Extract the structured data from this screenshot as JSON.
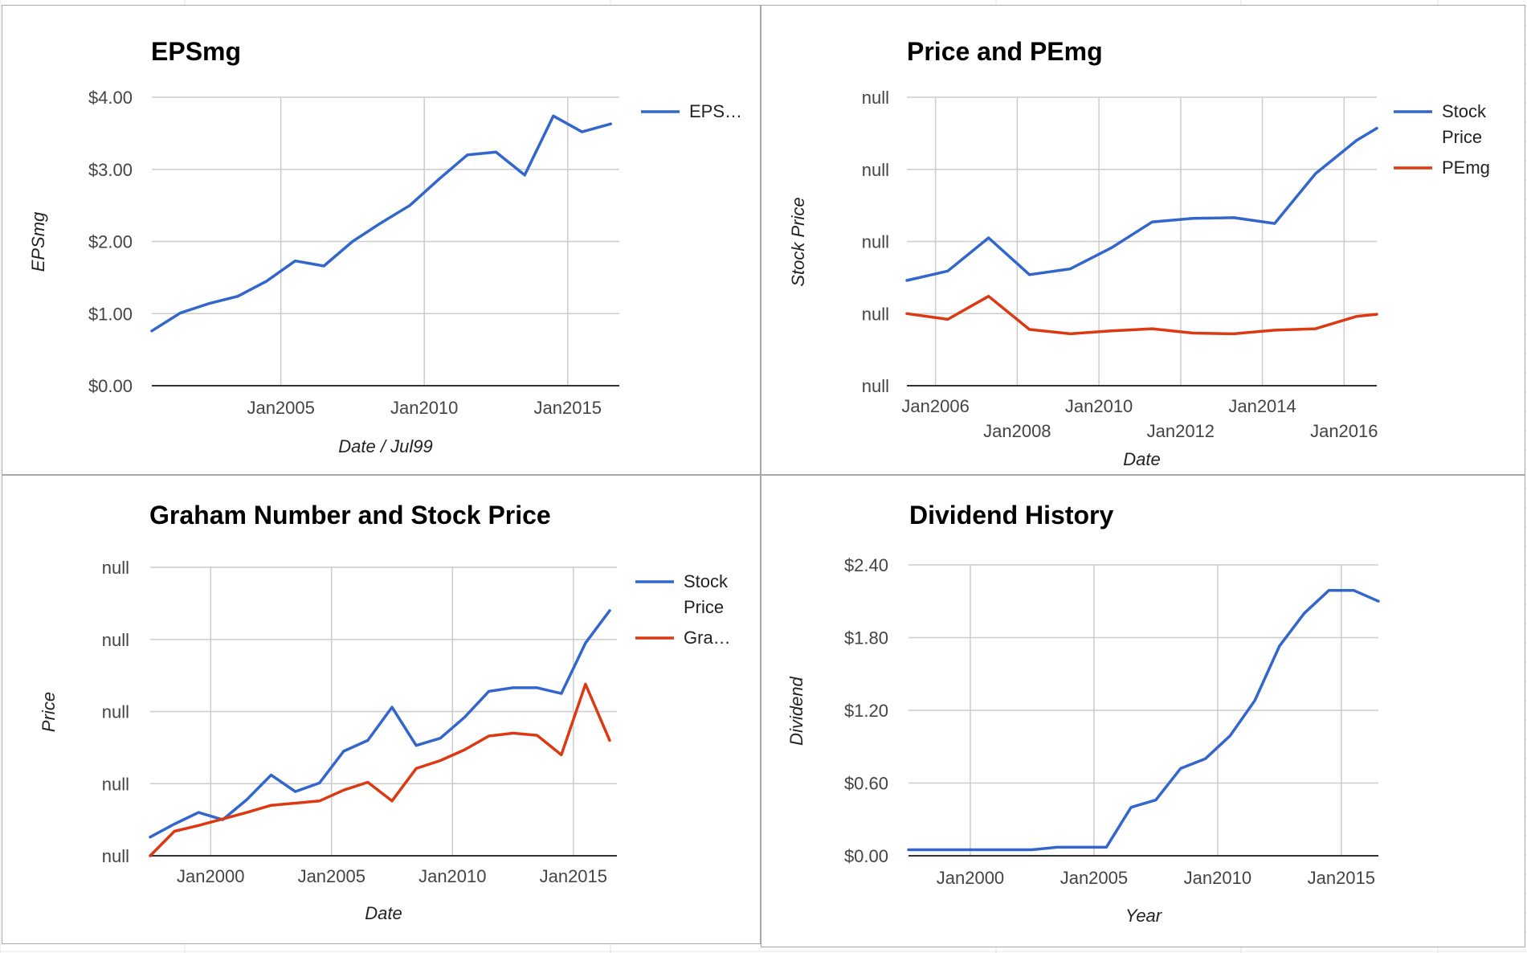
{
  "colors": {
    "series_blue": "#3366cc",
    "series_red": "#dc3912",
    "grid": "#cccccc",
    "axis": "#333333"
  },
  "chart_data": [
    {
      "type": "line",
      "title": "EPSmg",
      "xlabel": "Date / Jul99",
      "ylabel": "EPSmg",
      "xlim": [
        2000.5,
        2016.8
      ],
      "ylim": [
        0,
        4
      ],
      "x_ticks": [
        {
          "v": 2005,
          "label": "Jan2005"
        },
        {
          "v": 2010,
          "label": "Jan2010"
        },
        {
          "v": 2015,
          "label": "Jan2015"
        }
      ],
      "y_ticks": [
        {
          "v": 0,
          "label": "$0.00"
        },
        {
          "v": 1,
          "label": "$1.00"
        },
        {
          "v": 2,
          "label": "$2.00"
        },
        {
          "v": 3,
          "label": "$3.00"
        },
        {
          "v": 4,
          "label": "$4.00"
        }
      ],
      "grid": true,
      "legend": "right",
      "series": [
        {
          "name": "EPS…",
          "color": "#3366cc",
          "points": [
            [
              2000.5,
              0.76
            ],
            [
              2001.5,
              1.01
            ],
            [
              2002.5,
              1.14
            ],
            [
              2003.5,
              1.24
            ],
            [
              2004.5,
              1.45
            ],
            [
              2005.5,
              1.73
            ],
            [
              2006.5,
              1.66
            ],
            [
              2007.5,
              2.0
            ],
            [
              2008.5,
              2.26
            ],
            [
              2009.5,
              2.5
            ],
            [
              2010.5,
              2.86
            ],
            [
              2011.5,
              3.2
            ],
            [
              2012.5,
              3.24
            ],
            [
              2013.5,
              2.92
            ],
            [
              2014.5,
              3.74
            ],
            [
              2015.5,
              3.52
            ],
            [
              2016.5,
              3.63
            ]
          ]
        }
      ]
    },
    {
      "type": "line",
      "title": "Price and PEmg",
      "xlabel": "Date",
      "ylabel": "Stock Price",
      "xlim": [
        2005.3,
        2016.8
      ],
      "ylim": [
        0,
        4
      ],
      "x_ticks": [
        {
          "v": 2006,
          "label": "Jan2006",
          "row": 0
        },
        {
          "v": 2008,
          "label": "Jan2008",
          "row": 1
        },
        {
          "v": 2010,
          "label": "Jan2010",
          "row": 0
        },
        {
          "v": 2012,
          "label": "Jan2012",
          "row": 1
        },
        {
          "v": 2014,
          "label": "Jan2014",
          "row": 0
        },
        {
          "v": 2016,
          "label": "Jan2016",
          "row": 1
        }
      ],
      "y_ticks": [
        {
          "v": 0,
          "label": "null"
        },
        {
          "v": 1,
          "label": "null"
        },
        {
          "v": 2,
          "label": "null"
        },
        {
          "v": 3,
          "label": "null"
        },
        {
          "v": 4,
          "label": "null"
        }
      ],
      "grid": true,
      "legend": "right",
      "series": [
        {
          "name": "Stock Price",
          "name_lines": [
            "Stock",
            "Price"
          ],
          "color": "#3366cc",
          "points": [
            [
              2005.3,
              1.46
            ],
            [
              2006.3,
              1.59
            ],
            [
              2007.3,
              2.05
            ],
            [
              2008.3,
              1.54
            ],
            [
              2009.3,
              1.62
            ],
            [
              2010.3,
              1.91
            ],
            [
              2011.3,
              2.27
            ],
            [
              2012.3,
              2.32
            ],
            [
              2013.3,
              2.33
            ],
            [
              2014.3,
              2.25
            ],
            [
              2015.3,
              2.94
            ],
            [
              2016.3,
              3.4
            ],
            [
              2016.8,
              3.57
            ]
          ]
        },
        {
          "name": "PEmg",
          "name_lines": [
            "PEmg"
          ],
          "color": "#dc3912",
          "points": [
            [
              2005.3,
              1.0
            ],
            [
              2006.3,
              0.92
            ],
            [
              2007.3,
              1.24
            ],
            [
              2008.3,
              0.78
            ],
            [
              2009.3,
              0.72
            ],
            [
              2010.3,
              0.76
            ],
            [
              2011.3,
              0.79
            ],
            [
              2012.3,
              0.73
            ],
            [
              2013.3,
              0.72
            ],
            [
              2014.3,
              0.77
            ],
            [
              2015.3,
              0.79
            ],
            [
              2016.3,
              0.96
            ],
            [
              2016.8,
              0.99
            ]
          ]
        }
      ]
    },
    {
      "type": "line",
      "title": "Graham Number and Stock Price",
      "xlabel": "Date",
      "ylabel": "Price",
      "xlim": [
        1997.5,
        2016.8
      ],
      "ylim": [
        0,
        4
      ],
      "x_ticks": [
        {
          "v": 2000,
          "label": "Jan2000"
        },
        {
          "v": 2005,
          "label": "Jan2005"
        },
        {
          "v": 2010,
          "label": "Jan2010"
        },
        {
          "v": 2015,
          "label": "Jan2015"
        }
      ],
      "y_ticks": [
        {
          "v": 0,
          "label": "null"
        },
        {
          "v": 1,
          "label": "null"
        },
        {
          "v": 2,
          "label": "null"
        },
        {
          "v": 3,
          "label": "null"
        },
        {
          "v": 4,
          "label": "null"
        }
      ],
      "grid": true,
      "legend": "right",
      "series": [
        {
          "name": "Stock Price",
          "name_lines": [
            "Stock",
            "Price"
          ],
          "color": "#3366cc",
          "points": [
            [
              1997.5,
              0.26
            ],
            [
              1998.5,
              0.44
            ],
            [
              1999.5,
              0.6
            ],
            [
              2000.5,
              0.5
            ],
            [
              2001.5,
              0.78
            ],
            [
              2002.5,
              1.12
            ],
            [
              2003.5,
              0.89
            ],
            [
              2004.5,
              1.01
            ],
            [
              2005.5,
              1.45
            ],
            [
              2006.5,
              1.6
            ],
            [
              2007.5,
              2.06
            ],
            [
              2008.5,
              1.53
            ],
            [
              2009.5,
              1.63
            ],
            [
              2010.5,
              1.92
            ],
            [
              2011.5,
              2.28
            ],
            [
              2012.5,
              2.33
            ],
            [
              2013.5,
              2.33
            ],
            [
              2014.5,
              2.25
            ],
            [
              2015.5,
              2.95
            ],
            [
              2016.5,
              3.4
            ]
          ]
        },
        {
          "name": "Gra…",
          "name_lines": [
            "Gra…"
          ],
          "color": "#dc3912",
          "points": [
            [
              1997.5,
              0.0
            ],
            [
              1998.5,
              0.34
            ],
            [
              1999.5,
              0.42
            ],
            [
              2000.5,
              0.51
            ],
            [
              2001.5,
              0.6
            ],
            [
              2002.5,
              0.7
            ],
            [
              2003.5,
              0.73
            ],
            [
              2004.5,
              0.76
            ],
            [
              2005.5,
              0.91
            ],
            [
              2006.5,
              1.02
            ],
            [
              2007.5,
              0.76
            ],
            [
              2008.5,
              1.21
            ],
            [
              2009.5,
              1.32
            ],
            [
              2010.5,
              1.47
            ],
            [
              2011.5,
              1.66
            ],
            [
              2012.5,
              1.7
            ],
            [
              2013.5,
              1.67
            ],
            [
              2014.5,
              1.4
            ],
            [
              2015.5,
              2.38
            ],
            [
              2016.5,
              1.6
            ]
          ]
        }
      ]
    },
    {
      "type": "line",
      "title": "Dividend History",
      "xlabel": "Year",
      "ylabel": "Dividend",
      "xlim": [
        1997.5,
        2016.5
      ],
      "ylim": [
        0,
        2.4
      ],
      "x_ticks": [
        {
          "v": 2000,
          "label": "Jan2000"
        },
        {
          "v": 2005,
          "label": "Jan2005"
        },
        {
          "v": 2010,
          "label": "Jan2010"
        },
        {
          "v": 2015,
          "label": "Jan2015"
        }
      ],
      "y_ticks": [
        {
          "v": 0,
          "label": "$0.00"
        },
        {
          "v": 0.6,
          "label": "$0.60"
        },
        {
          "v": 1.2,
          "label": "$1.20"
        },
        {
          "v": 1.8,
          "label": "$1.80"
        },
        {
          "v": 2.4,
          "label": "$2.40"
        }
      ],
      "grid": true,
      "legend": "none",
      "series": [
        {
          "name": "",
          "color": "#3366cc",
          "points": [
            [
              1997.5,
              0.05
            ],
            [
              1998.5,
              0.05
            ],
            [
              1999.5,
              0.05
            ],
            [
              2000.5,
              0.05
            ],
            [
              2001.5,
              0.05
            ],
            [
              2002.5,
              0.05
            ],
            [
              2003.5,
              0.07
            ],
            [
              2004.5,
              0.07
            ],
            [
              2005.5,
              0.07
            ],
            [
              2006.5,
              0.4
            ],
            [
              2007.5,
              0.46
            ],
            [
              2008.5,
              0.72
            ],
            [
              2009.5,
              0.8
            ],
            [
              2010.5,
              0.99
            ],
            [
              2011.5,
              1.28
            ],
            [
              2012.5,
              1.73
            ],
            [
              2013.5,
              2.0
            ],
            [
              2014.5,
              2.19
            ],
            [
              2015.5,
              2.19
            ],
            [
              2016.5,
              2.1
            ]
          ]
        }
      ]
    }
  ]
}
